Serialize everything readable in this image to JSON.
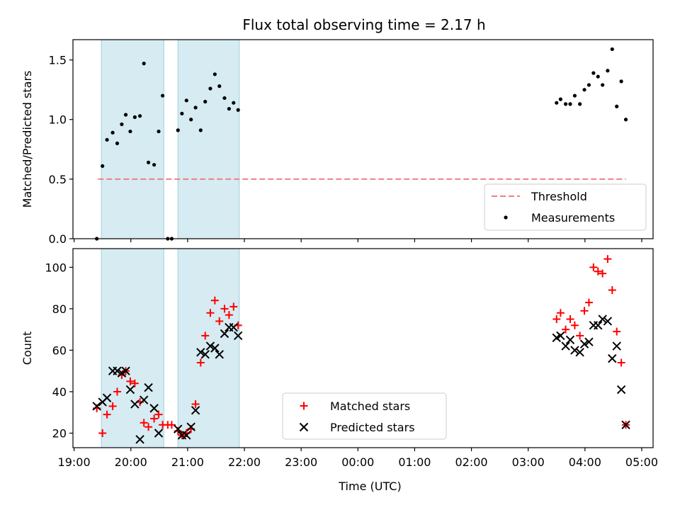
{
  "chart_data": [
    {
      "type": "scatter",
      "title": "Flux total observing time = 2.17 h",
      "ylabel": "Matched/Predicted stars",
      "xlabel": "",
      "x_unit": "hours since 19:00 UTC",
      "xlim": [
        -0.02,
        10.2
      ],
      "ylim": [
        0,
        1.67
      ],
      "yticks": [
        0.0,
        0.5,
        1.0,
        1.5
      ],
      "ytick_labels": [
        "0.0",
        "0.5",
        "1.0",
        "1.5"
      ],
      "grid": false,
      "legend_position": "bottom-right",
      "shaded_intervals": [
        [
          0.48,
          1.58
        ],
        [
          1.83,
          2.91
        ]
      ],
      "threshold": {
        "name": "Threshold",
        "value": 0.5,
        "x_range": [
          0.42,
          9.72
        ],
        "color": "#f08080"
      },
      "series": [
        {
          "name": "Measurements",
          "color": "#000000",
          "points": [
            [
              0.4,
              0.0
            ],
            [
              0.5,
              0.61
            ],
            [
              0.58,
              0.83
            ],
            [
              0.68,
              0.89
            ],
            [
              0.76,
              0.8
            ],
            [
              0.84,
              0.96
            ],
            [
              0.91,
              1.04
            ],
            [
              0.99,
              0.9
            ],
            [
              1.07,
              1.02
            ],
            [
              1.16,
              1.03
            ],
            [
              1.23,
              1.47
            ],
            [
              1.31,
              0.64
            ],
            [
              1.41,
              0.62
            ],
            [
              1.49,
              0.9
            ],
            [
              1.56,
              1.2
            ],
            [
              1.65,
              0.0
            ],
            [
              1.72,
              0.0
            ],
            [
              1.83,
              0.91
            ],
            [
              1.9,
              1.05
            ],
            [
              1.98,
              1.16
            ],
            [
              2.06,
              1.0
            ],
            [
              2.14,
              1.1
            ],
            [
              2.23,
              0.91
            ],
            [
              2.31,
              1.15
            ],
            [
              2.4,
              1.26
            ],
            [
              2.48,
              1.38
            ],
            [
              2.56,
              1.28
            ],
            [
              2.65,
              1.18
            ],
            [
              2.73,
              1.09
            ],
            [
              2.81,
              1.14
            ],
            [
              2.89,
              1.08
            ],
            [
              8.5,
              1.14
            ],
            [
              8.57,
              1.17
            ],
            [
              8.66,
              1.13
            ],
            [
              8.74,
              1.13
            ],
            [
              8.82,
              1.2
            ],
            [
              8.91,
              1.13
            ],
            [
              8.99,
              1.25
            ],
            [
              9.07,
              1.29
            ],
            [
              9.15,
              1.39
            ],
            [
              9.23,
              1.36
            ],
            [
              9.31,
              1.29
            ],
            [
              9.4,
              1.41
            ],
            [
              9.48,
              1.59
            ],
            [
              9.56,
              1.11
            ],
            [
              9.64,
              1.32
            ],
            [
              9.72,
              1.0
            ]
          ]
        }
      ]
    },
    {
      "type": "scatter",
      "title": "",
      "xlabel": "Time (UTC)",
      "ylabel": "Count",
      "x_unit": "hours since 19:00 UTC",
      "xlim": [
        -0.02,
        10.2
      ],
      "ylim": [
        13,
        109
      ],
      "yticks": [
        20,
        40,
        60,
        80,
        100
      ],
      "ytick_labels": [
        "20",
        "40",
        "60",
        "80",
        "100"
      ],
      "xticks": [
        0,
        1,
        2,
        3,
        4,
        5,
        6,
        7,
        8,
        9,
        10
      ],
      "xtick_labels": [
        "19:00",
        "20:00",
        "21:00",
        "22:00",
        "23:00",
        "00:00",
        "01:00",
        "02:00",
        "03:00",
        "04:00",
        "05:00"
      ],
      "grid": false,
      "legend_position": "bottom-center",
      "shaded_intervals": [
        [
          0.48,
          1.58
        ],
        [
          1.83,
          2.91
        ]
      ],
      "series": [
        {
          "name": "Matched stars",
          "marker": "plus",
          "color": "#ff0000",
          "points": [
            [
              0.4,
              32
            ],
            [
              0.5,
              20
            ],
            [
              0.58,
              29
            ],
            [
              0.68,
              33
            ],
            [
              0.76,
              40
            ],
            [
              0.84,
              48
            ],
            [
              0.91,
              50
            ],
            [
              0.99,
              45
            ],
            [
              1.07,
              44
            ],
            [
              1.16,
              35
            ],
            [
              1.23,
              25
            ],
            [
              1.31,
              23
            ],
            [
              1.41,
              27
            ],
            [
              1.49,
              29
            ],
            [
              1.56,
              24
            ],
            [
              1.65,
              24
            ],
            [
              1.72,
              24
            ],
            [
              1.83,
              21
            ],
            [
              1.9,
              19
            ],
            [
              1.98,
              20
            ],
            [
              2.06,
              22
            ],
            [
              2.14,
              34
            ],
            [
              2.23,
              54
            ],
            [
              2.31,
              67
            ],
            [
              2.4,
              78
            ],
            [
              2.48,
              84
            ],
            [
              2.56,
              74
            ],
            [
              2.65,
              80
            ],
            [
              2.73,
              77
            ],
            [
              2.81,
              81
            ],
            [
              2.89,
              72
            ],
            [
              8.5,
              75
            ],
            [
              8.57,
              78
            ],
            [
              8.66,
              70
            ],
            [
              8.74,
              75
            ],
            [
              8.82,
              72
            ],
            [
              8.91,
              67
            ],
            [
              8.99,
              79
            ],
            [
              9.07,
              83
            ],
            [
              9.15,
              100
            ],
            [
              9.23,
              98
            ],
            [
              9.31,
              97
            ],
            [
              9.4,
              104
            ],
            [
              9.48,
              89
            ],
            [
              9.56,
              69
            ],
            [
              9.64,
              54
            ],
            [
              9.72,
              24
            ]
          ]
        },
        {
          "name": "Predicted stars",
          "marker": "x",
          "color": "#000000",
          "points": [
            [
              0.4,
              33
            ],
            [
              0.5,
              35
            ],
            [
              0.58,
              37
            ],
            [
              0.68,
              50
            ],
            [
              0.76,
              50
            ],
            [
              0.84,
              49
            ],
            [
              0.91,
              50
            ],
            [
              0.99,
              41
            ],
            [
              1.07,
              34
            ],
            [
              1.16,
              17
            ],
            [
              1.23,
              36
            ],
            [
              1.31,
              42
            ],
            [
              1.41,
              32
            ],
            [
              1.49,
              20
            ],
            [
              1.83,
              22
            ],
            [
              1.9,
              19
            ],
            [
              1.98,
              19
            ],
            [
              2.06,
              23
            ],
            [
              2.14,
              31
            ],
            [
              2.23,
              59
            ],
            [
              2.31,
              58
            ],
            [
              2.4,
              62
            ],
            [
              2.48,
              61
            ],
            [
              2.56,
              58
            ],
            [
              2.65,
              68
            ],
            [
              2.73,
              71
            ],
            [
              2.81,
              71
            ],
            [
              2.89,
              67
            ],
            [
              8.5,
              66
            ],
            [
              8.57,
              67
            ],
            [
              8.66,
              62
            ],
            [
              8.74,
              65
            ],
            [
              8.82,
              60
            ],
            [
              8.91,
              59
            ],
            [
              8.99,
              63
            ],
            [
              9.07,
              64
            ],
            [
              9.15,
              72
            ],
            [
              9.23,
              72
            ],
            [
              9.31,
              75
            ],
            [
              9.4,
              74
            ],
            [
              9.48,
              56
            ],
            [
              9.56,
              62
            ],
            [
              9.64,
              41
            ],
            [
              9.72,
              24
            ]
          ]
        }
      ]
    }
  ]
}
